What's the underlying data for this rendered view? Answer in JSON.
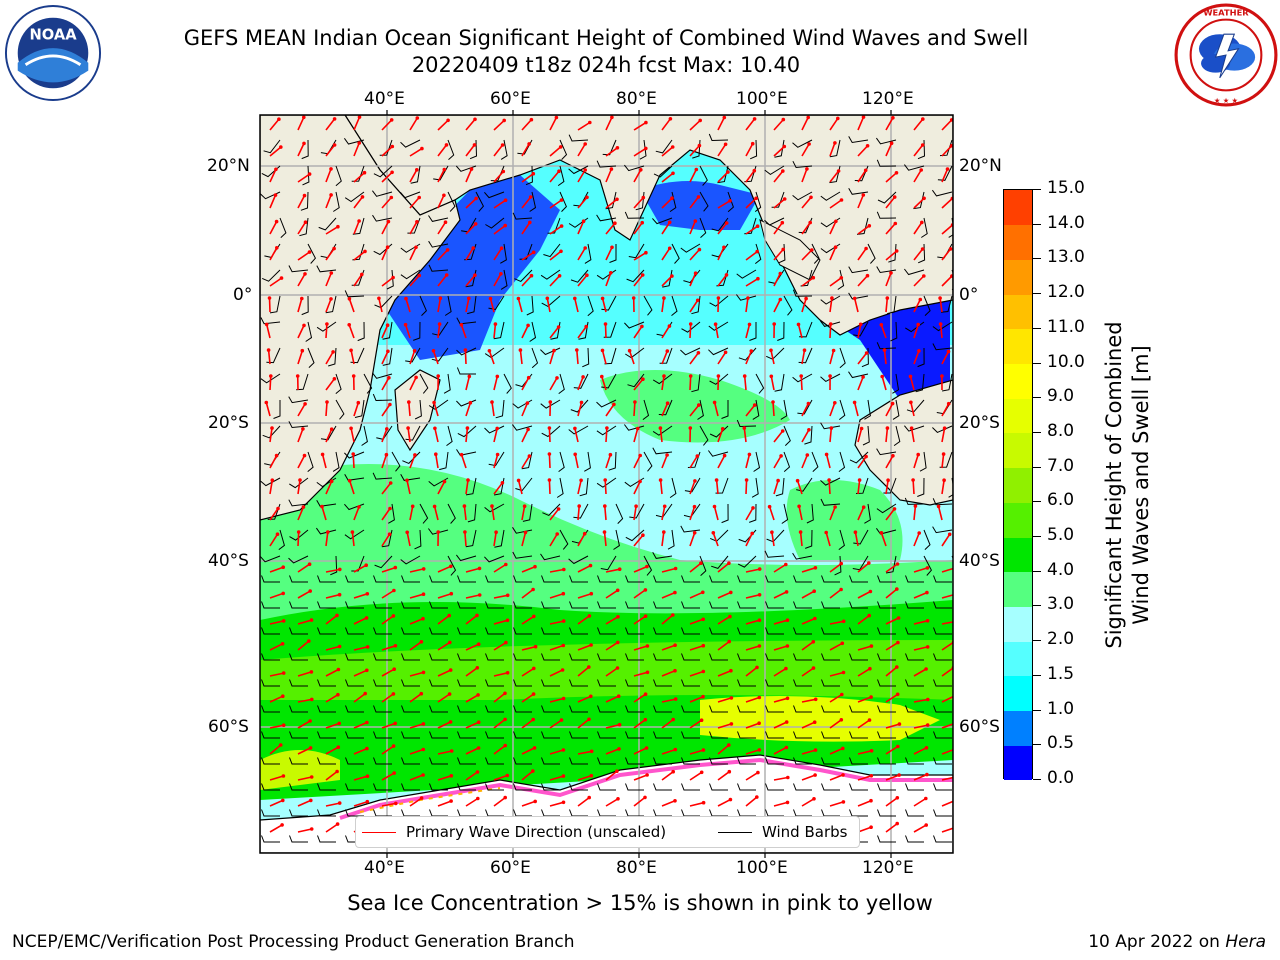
{
  "title": {
    "line1": "GEFS MEAN Indian Ocean Significant Height of Combined Wind Waves and Swell",
    "line2": "20220409 t18z 024h fcst   Max: 10.40"
  },
  "map": {
    "lon_ticks": [
      "40°E",
      "60°E",
      "80°E",
      "100°E",
      "120°E"
    ],
    "lat_ticks_left": [
      "20°N",
      "0°",
      "20°S",
      "40°S",
      "60°S"
    ],
    "lat_ticks_right": [
      "20°N",
      "0°",
      "20°S",
      "40°S",
      "60°S"
    ],
    "land_color": "#efedde",
    "ice_note_colors": [
      "#ff55cc",
      "#ffb000",
      "#ffff66"
    ]
  },
  "legend": {
    "wave_label": "Primary Wave Direction (unscaled)",
    "wave_color": "#ff0000",
    "wind_label": "Wind Barbs",
    "wind_color": "#000000"
  },
  "colorbar": {
    "title_line1": "Significant Height of Combined",
    "title_line2": "Wind Waves and Swell [m]",
    "ticks": [
      "15.0",
      "14.0",
      "13.0",
      "12.0",
      "11.0",
      "10.0",
      "9.0",
      "8.0",
      "7.0",
      "6.0",
      "5.0",
      "4.0",
      "3.0",
      "2.0",
      "1.5",
      "1.0",
      "0.5",
      "0.0"
    ],
    "colors": [
      "#0000ff",
      "#0080ff",
      "#00ffff",
      "#55ffff",
      "#a6ffff",
      "#55ff80",
      "#00e600",
      "#55f000",
      "#90f000",
      "#c8fa00",
      "#e6ff00",
      "#ffff00",
      "#ffe600",
      "#ffc000",
      "#ff9a00",
      "#ff7000",
      "#ff4000",
      "#ff0000"
    ]
  },
  "caption": "Sea Ice Concentration > 15% is shown in pink to yellow",
  "footer": {
    "left": "NCEP/EMC/Verification Post Processing Product Generation Branch",
    "right_prefix": "10 Apr 2022 on ",
    "right_host": "Hera"
  },
  "logos": {
    "noaa_text": "NOAA",
    "noaa_ring_text": "NATIONAL OCEANIC AND ATMOSPHERIC ADMINISTRATION · U.S. DEPARTMENT OF COMMERCE",
    "nws_ring_text": "NATIONAL WEATHER SERVICE"
  }
}
